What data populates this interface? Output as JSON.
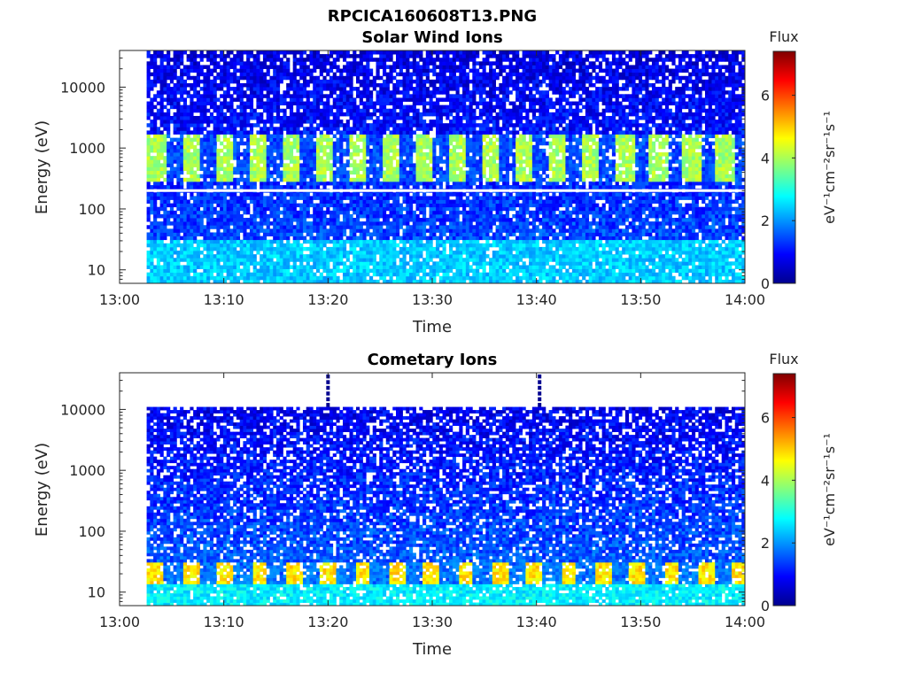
{
  "figure_title": "RPCICA160608T13.PNG",
  "colormap": [
    "#00008f",
    "#0000ff",
    "#0080ff",
    "#00ffff",
    "#80ff80",
    "#ffff00",
    "#ff8000",
    "#ff0000",
    "#800000"
  ],
  "chart_data": [
    {
      "type": "heatmap",
      "title": "Solar Wind Ions",
      "xlabel": "Time",
      "ylabel": "Energy (eV)",
      "x_ticks": [
        "13:00",
        "13:10",
        "13:20",
        "13:30",
        "13:40",
        "13:50",
        "14:00"
      ],
      "x_range_minutes": [
        0,
        60
      ],
      "y_scale": "log",
      "y_ticks": [
        10,
        100,
        1000,
        10000
      ],
      "y_tick_labels": [
        "10",
        "100",
        "1000",
        "10000"
      ],
      "ylim_eV": [
        6,
        40000
      ],
      "data_start_minute": 2.6,
      "data_ymax_eV": 40000,
      "colorbar": {
        "title": "Flux",
        "label": "eV⁻¹cm⁻²sr⁻¹s⁻¹",
        "range": [
          0,
          7.4
        ],
        "ticks": [
          "0",
          "2",
          "4",
          "6"
        ]
      },
      "features": {
        "bands": [
          {
            "energy_range_eV": [
              300,
              1800
            ],
            "peak_value": 4.0,
            "periodic": true,
            "period_minutes": 3.2,
            "duty": 0.55
          },
          {
            "energy_range_eV": [
              6,
              30
            ],
            "peak_value": 2.4,
            "periodic": false
          }
        ],
        "background_value_high": 0.7,
        "background_value_low": 1.6,
        "gap_line_eV": 200,
        "gap_fraction": 0.15
      }
    },
    {
      "type": "heatmap",
      "title": "Cometary Ions",
      "xlabel": "Time",
      "ylabel": "Energy (eV)",
      "x_ticks": [
        "13:00",
        "13:10",
        "13:20",
        "13:30",
        "13:40",
        "13:50",
        "14:00"
      ],
      "x_range_minutes": [
        0,
        60
      ],
      "y_scale": "log",
      "y_ticks": [
        10,
        100,
        1000,
        10000
      ],
      "y_tick_labels": [
        "10",
        "100",
        "1000",
        "10000"
      ],
      "ylim_eV": [
        6,
        40000
      ],
      "data_start_minute": 2.6,
      "data_ymax_eV": 11000,
      "spikes": [
        {
          "minute": 20.0,
          "energy_range_eV": [
            11000,
            40000
          ]
        },
        {
          "minute": 40.3,
          "energy_range_eV": [
            11000,
            40000
          ]
        }
      ],
      "colorbar": {
        "title": "Flux",
        "label": "eV⁻¹cm⁻²sr⁻¹s⁻¹",
        "range": [
          0,
          7.4
        ],
        "ticks": [
          "0",
          "2",
          "4",
          "6"
        ]
      },
      "features": {
        "bands": [
          {
            "energy_range_eV": [
              14,
              32
            ],
            "peak_value": 4.8,
            "periodic": true,
            "period_minutes": 3.3,
            "duty": 0.45
          },
          {
            "energy_range_eV": [
              6,
              14
            ],
            "peak_value": 2.7,
            "periodic": false
          }
        ],
        "background_value_high": 0.8,
        "background_value_low": 1.8,
        "gap_fraction": 0.2
      }
    }
  ]
}
